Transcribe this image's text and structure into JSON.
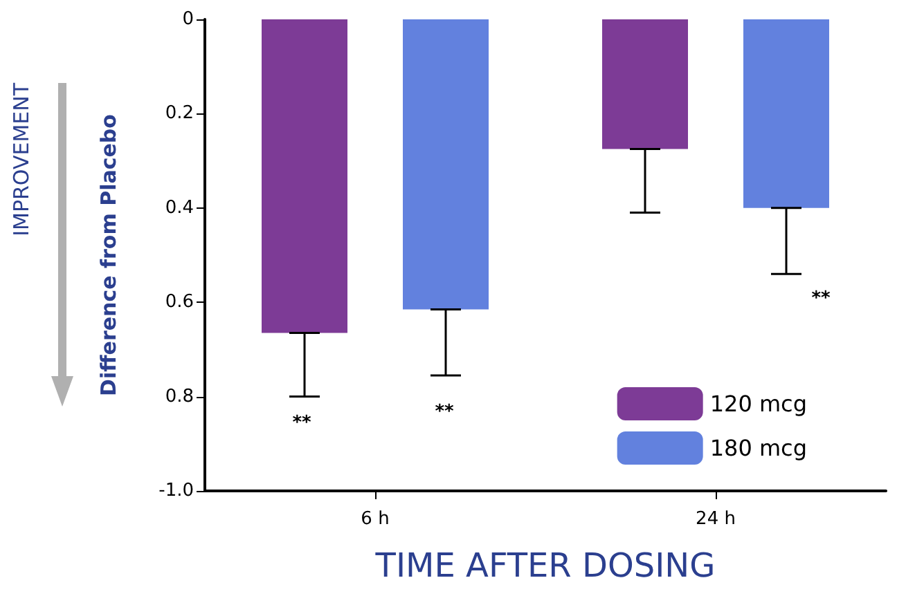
{
  "chart_data": {
    "type": "bar",
    "xlabel": "TIME AFTER DOSING",
    "ylabel": "Difference from Placebo",
    "categories": [
      "6 h",
      "24 h"
    ],
    "series": [
      {
        "name": "120 mcg",
        "color": "#7d3b96",
        "values": [
          -0.665,
          -0.275
        ],
        "errors": [
          [
            -0.8,
            -0.665
          ],
          [
            -0.41,
            -0.275
          ]
        ]
      },
      {
        "name": "180 mcg",
        "color": "#6281de",
        "values": [
          -0.615,
          -0.4
        ],
        "errors": [
          [
            -0.755,
            -0.615
          ],
          [
            -0.54,
            -0.4
          ]
        ]
      }
    ],
    "ylim": [
      -1.0,
      0
    ],
    "yticks": [
      0,
      {
        "value": -0.2,
        "label": "0.2"
      },
      {
        "value": -0.4,
        "label": "0.4"
      },
      {
        "value": -0.6,
        "label": "0.6"
      },
      {
        "value": -0.8,
        "label": "0.8"
      },
      {
        "value": -1.0,
        "label": "-1.0"
      }
    ],
    "annotations": [
      "IMPROVEMENT",
      "**",
      "**",
      "**"
    ],
    "legend": "bottom right",
    "grid": false
  }
}
